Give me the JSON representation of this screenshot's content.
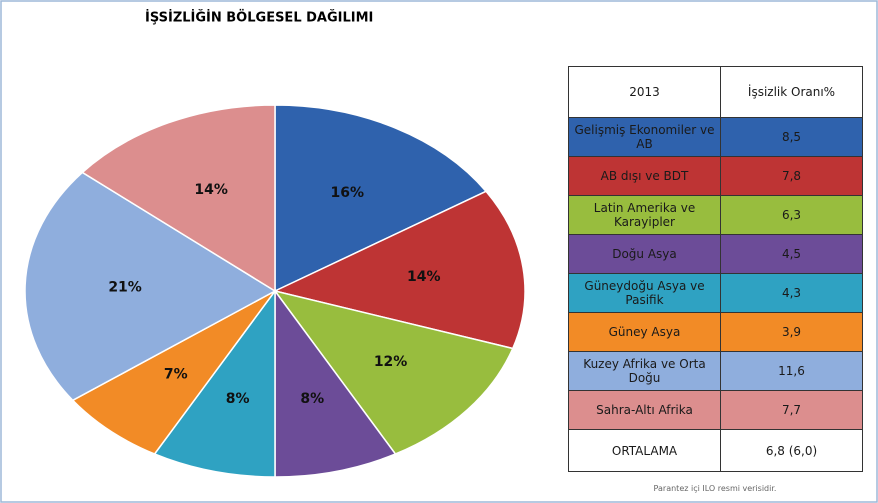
{
  "chart_data": {
    "type": "pie",
    "title": "İŞSİZLİĞİN BÖLGESEL DAĞILIMI",
    "categories": [
      "Gelişmiş Ekonomiler ve AB",
      "AB dışı ve BDT",
      "Latin Amerika ve Karayipler",
      "Doğu Asya",
      "Güneydoğu Asya ve Pasifik",
      "Güney Asya",
      "Kuzey Afrika ve Orta Doğu",
      "Sahra-Altı Afrika"
    ],
    "values": [
      16,
      14,
      12,
      8,
      8,
      7,
      21,
      14
    ],
    "value_labels": [
      "16%",
      "14%",
      "12%",
      "8%",
      "8%",
      "7%",
      "21%",
      "14%"
    ],
    "colors": [
      "#2f62ad",
      "#be3434",
      "#98bd3e",
      "#6c4c98",
      "#2fa2c2",
      "#f28b26",
      "#8faedd",
      "#dc8e8e"
    ]
  },
  "table": {
    "header": [
      "2013",
      "İşsizlik Oranı%"
    ],
    "rates": [
      "8,5",
      "7,8",
      "6,3",
      "4,5",
      "4,3",
      "3,9",
      "11,6",
      "7,7"
    ],
    "average_label": "ORTALAMA",
    "average_value": "6,8 (6,0)",
    "note": "Parantez içi ILO resmi verisidir."
  }
}
